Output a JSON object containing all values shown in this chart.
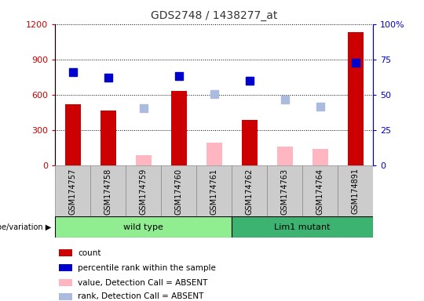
{
  "title": "GDS2748 / 1438277_at",
  "samples": [
    "GSM174757",
    "GSM174758",
    "GSM174759",
    "GSM174760",
    "GSM174761",
    "GSM174762",
    "GSM174763",
    "GSM174764",
    "GSM174891"
  ],
  "count_present": [
    520,
    470,
    null,
    630,
    null,
    390,
    null,
    null,
    1130
  ],
  "count_absent": [
    null,
    null,
    90,
    null,
    195,
    null,
    160,
    140,
    null
  ],
  "rank_present": [
    65.8,
    62.1,
    null,
    63.3,
    null,
    60.0,
    null,
    null,
    72.5
  ],
  "rank_absent": [
    null,
    null,
    40.8,
    null,
    50.8,
    null,
    46.7,
    41.7,
    null
  ],
  "ylim_left": [
    0,
    1200
  ],
  "ylim_right": [
    0,
    100
  ],
  "yticks_left": [
    0,
    300,
    600,
    900,
    1200
  ],
  "yticks_right": [
    0,
    25,
    50,
    75,
    100
  ],
  "groups": [
    {
      "label": "wild type",
      "start": 0,
      "end": 4,
      "color": "#90EE90"
    },
    {
      "label": "Lim1 mutant",
      "start": 5,
      "end": 8,
      "color": "#3CB371"
    }
  ],
  "group_row_label": "genotype/variation",
  "legend_items": [
    {
      "color": "#CC0000",
      "label": "count"
    },
    {
      "color": "#0000CC",
      "label": "percentile rank within the sample"
    },
    {
      "color": "#FFB6C1",
      "label": "value, Detection Call = ABSENT"
    },
    {
      "color": "#AABBDD",
      "label": "rank, Detection Call = ABSENT"
    }
  ],
  "bar_width": 0.45,
  "marker_size": 7,
  "plot_bg": "#ffffff",
  "title_color": "#333333",
  "left_axis_color": "#CC0000",
  "right_axis_color": "#0000CC",
  "gray_col_color": "#cccccc",
  "gray_col_border": "#888888"
}
